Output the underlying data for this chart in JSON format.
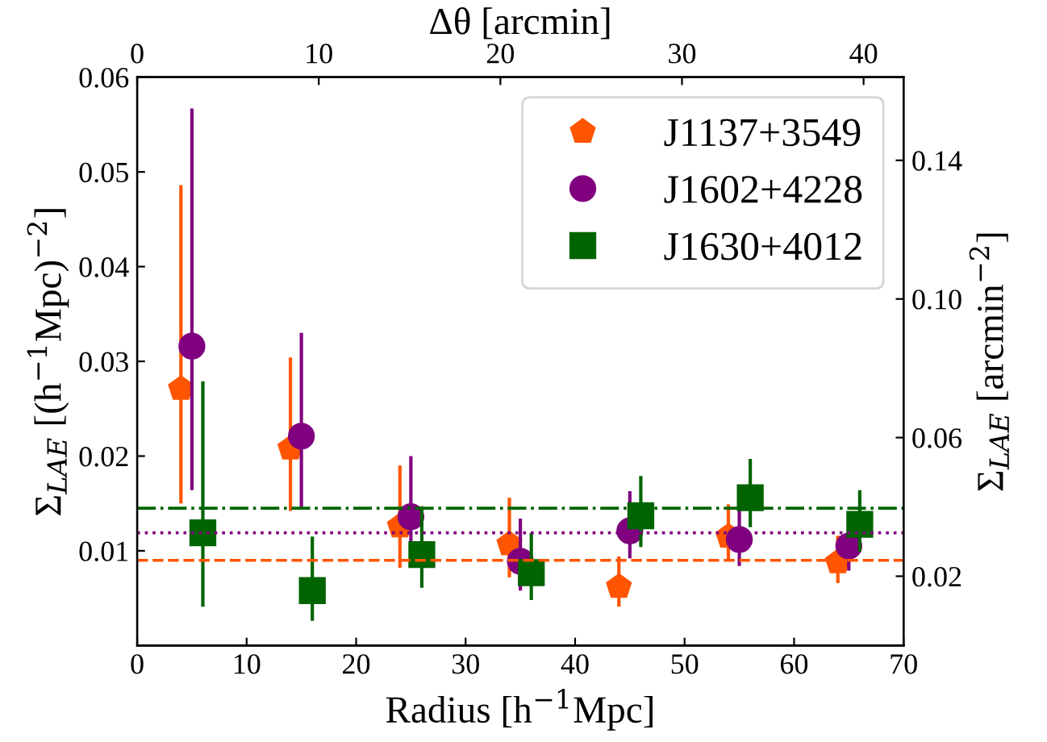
{
  "chart_data": {
    "type": "scatter",
    "xlabel": "Radius [h$^{−1}$Mpc]",
    "ylabel": "Σ$_{LAE}$ [(h$^{−1}$Mpc)$^{−2}$]",
    "y2label": "Σ$_{LAE}$ [arcmin$^{−2}$]",
    "x2label": "Δθ [arcmin]",
    "xlim": [
      0,
      70
    ],
    "xticks": [
      0,
      10,
      20,
      30,
      40,
      50,
      60,
      70
    ],
    "ylim": [
      0,
      0.06
    ],
    "yticks": [
      0.01,
      0.02,
      0.03,
      0.04,
      0.05,
      0.06
    ],
    "y2lim": [
      0,
      0.164
    ],
    "y2ticks": [
      0.02,
      0.06,
      {
        "value": 0.1,
        "label": "0.10"
      },
      0.14
    ],
    "x2lim": [
      0,
      42.2
    ],
    "x2ticks": [
      0,
      10,
      20,
      30,
      40
    ],
    "grid": false,
    "legend": "top right",
    "series": [
      {
        "name": "J1137+3549",
        "color": "#ff5500",
        "x": [
          4,
          14,
          24,
          34,
          44,
          54,
          64
        ],
        "values": [
          0.0271,
          0.0208,
          0.0126,
          0.0107,
          0.0062,
          0.0115,
          0.0088
        ],
        "errors": [
          [
            0.015,
            0.0486
          ],
          [
            0.0142,
            0.0304
          ],
          [
            0.0082,
            0.019
          ],
          [
            0.0072,
            0.0156
          ],
          [
            0.0041,
            0.0094
          ],
          [
            0.0091,
            0.0149
          ],
          [
            0.0066,
            0.0116
          ]
        ]
      },
      {
        "name": "J1602+4228",
        "color": "#800080",
        "marker": "circle",
        "x": [
          5,
          15,
          25,
          35,
          45,
          55,
          65
        ],
        "values": [
          0.0316,
          0.0221,
          0.0136,
          0.0089,
          0.0121,
          0.0112,
          0.0105
        ],
        "errors": [
          [
            0.0164,
            0.0567
          ],
          [
            0.0145,
            0.033
          ],
          [
            0.0092,
            0.02
          ],
          [
            0.0058,
            0.0134
          ],
          [
            0.0092,
            0.0163
          ],
          [
            0.0084,
            0.0147
          ],
          [
            0.0079,
            0.0139
          ]
        ]
      },
      {
        "name": "J1630+4012",
        "color": "#006400",
        "marker": "square",
        "x": [
          6,
          16,
          26,
          36,
          46,
          56,
          66
        ],
        "values": [
          0.0119,
          0.0058,
          0.0096,
          0.0077,
          0.0137,
          0.0156,
          0.0128
        ],
        "errors": [
          [
            0.0041,
            0.0279
          ],
          [
            0.0026,
            0.0115
          ],
          [
            0.0061,
            0.0147
          ],
          [
            0.0048,
            0.0119
          ],
          [
            0.0104,
            0.0179
          ],
          [
            0.0125,
            0.0197
          ],
          [
            0.0099,
            0.0164
          ]
        ]
      }
    ],
    "ref_lines": [
      {
        "axis": "y",
        "value": 0.0145,
        "color": "#006400",
        "line_style": "dashdot"
      },
      {
        "axis": "y",
        "value": 0.0119,
        "color": "#800080",
        "line_style": "dotted"
      },
      {
        "axis": "y",
        "value": 0.009,
        "color": "#ff5500",
        "line_style": "dashed"
      }
    ]
  }
}
